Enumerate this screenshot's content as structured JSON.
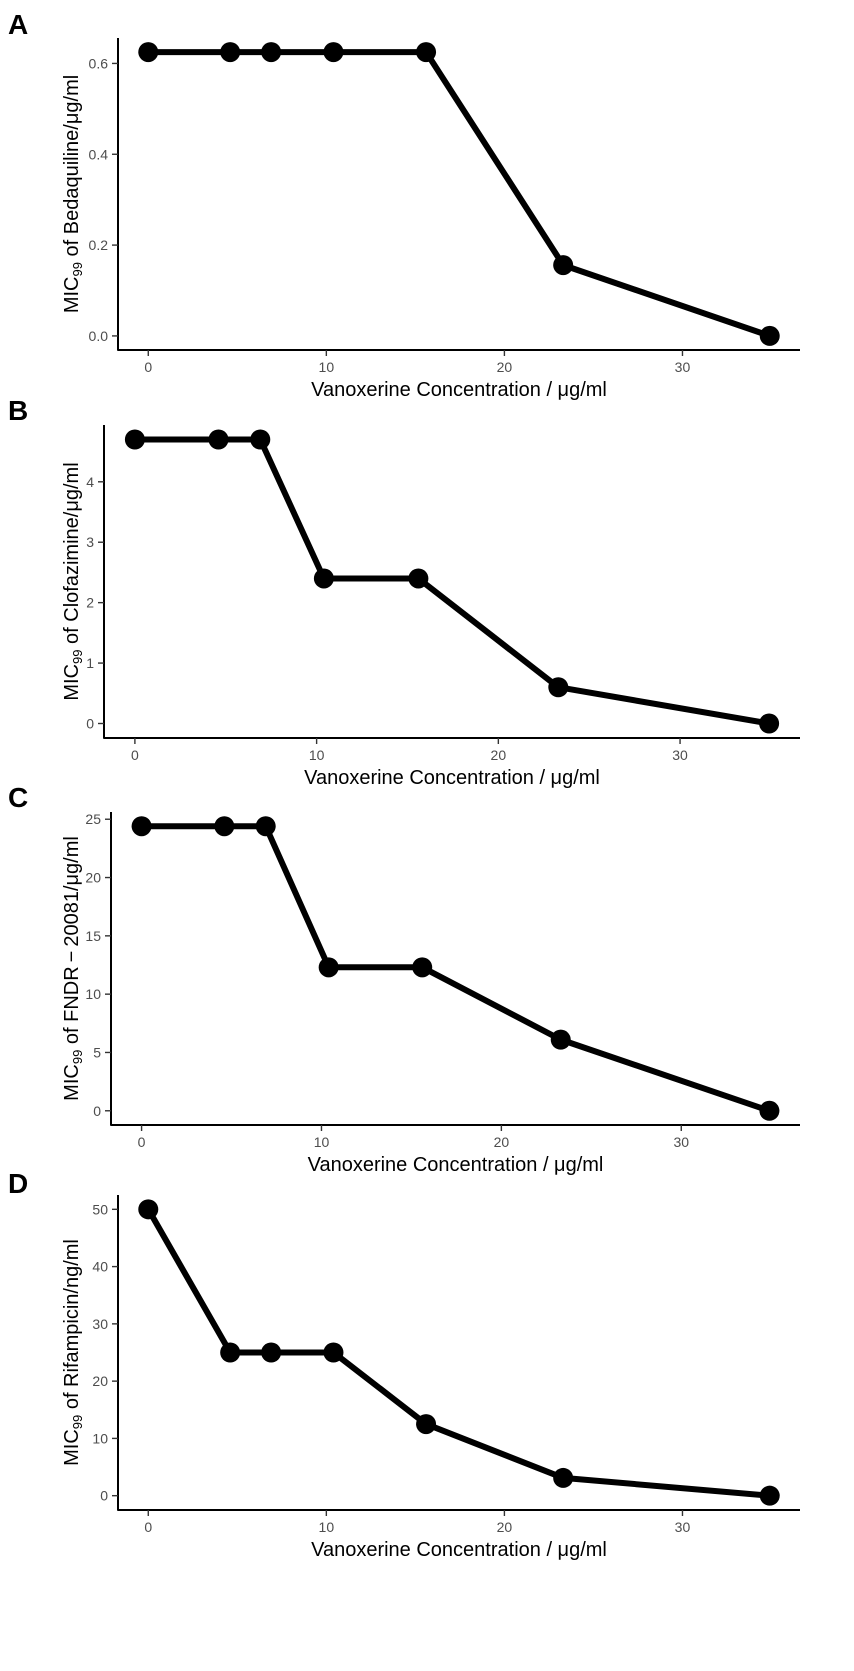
{
  "chart_data": [
    {
      "type": "line",
      "panel": "A",
      "title": "",
      "xlabel": "Vanoxerine Concentration / μg/ml",
      "ylabel": {
        "prefix": "MIC",
        "subscript": "99",
        "suffix": " of Bedaquiline/μg/ml"
      },
      "x": [
        0,
        4.6,
        6.9,
        10.4,
        15.6,
        23.3,
        34.9
      ],
      "values": [
        0.625,
        0.625,
        0.625,
        0.625,
        0.625,
        0.156,
        0.0
      ],
      "xlim": [
        -1.7,
        36.6
      ],
      "ylim": [
        -0.031,
        0.656
      ],
      "xticks": [
        0,
        10,
        20,
        30
      ],
      "yticks": [
        0.0,
        0.2,
        0.4,
        0.6
      ],
      "ytick_labels": [
        "0.0",
        "0.2",
        "0.4",
        "0.6"
      ],
      "grid": false,
      "color": "#000000"
    },
    {
      "type": "line",
      "panel": "B",
      "title": "",
      "xlabel": "Vanoxerine Concentration / μg/ml",
      "ylabel": {
        "prefix": "MIC",
        "subscript": "99",
        "suffix": " of Clofazimine/μg/ml"
      },
      "x": [
        0,
        4.6,
        6.9,
        10.4,
        15.6,
        23.3,
        34.9
      ],
      "values": [
        4.7,
        4.7,
        4.7,
        2.4,
        2.4,
        0.6,
        0.0
      ],
      "xlim": [
        -1.7,
        36.6
      ],
      "ylim": [
        -0.24,
        4.94
      ],
      "xticks": [
        0,
        10,
        20,
        30
      ],
      "yticks": [
        0,
        1,
        2,
        3,
        4
      ],
      "ytick_labels": [
        "0",
        "1",
        "2",
        "3",
        "4"
      ],
      "grid": false,
      "color": "#000000"
    },
    {
      "type": "line",
      "panel": "C",
      "title": "",
      "xlabel": "Vanoxerine Concentration / μg/ml",
      "ylabel": {
        "prefix": "MIC",
        "subscript": "99",
        "suffix": " of FNDR − 20081/μg/ml"
      },
      "x": [
        0,
        4.6,
        6.9,
        10.4,
        15.6,
        23.3,
        34.9
      ],
      "values": [
        24.4,
        24.4,
        24.4,
        12.3,
        12.3,
        6.1,
        0.0
      ],
      "xlim": [
        -1.7,
        36.6
      ],
      "ylim": [
        -1.22,
        25.62
      ],
      "xticks": [
        0,
        10,
        20,
        30
      ],
      "yticks": [
        0,
        5,
        10,
        15,
        20,
        25
      ],
      "ytick_labels": [
        "0",
        "5",
        "10",
        "15",
        "20",
        "25"
      ],
      "grid": false,
      "color": "#000000"
    },
    {
      "type": "line",
      "panel": "D",
      "title": "",
      "xlabel": "Vanoxerine Concentration / μg/ml",
      "ylabel": {
        "prefix": "MIC",
        "subscript": "99",
        "suffix": " of Rifampicin/ng/ml"
      },
      "x": [
        0,
        4.6,
        6.9,
        10.4,
        15.6,
        23.3,
        34.9
      ],
      "values": [
        50,
        25,
        25,
        25,
        12.5,
        3.1,
        0.0
      ],
      "xlim": [
        -1.7,
        36.6
      ],
      "ylim": [
        -2.5,
        52.5
      ],
      "xticks": [
        0,
        10,
        20,
        30
      ],
      "yticks": [
        0,
        10,
        20,
        30,
        40,
        50
      ],
      "ytick_labels": [
        "0",
        "10",
        "20",
        "30",
        "40",
        "50"
      ],
      "grid": false,
      "color": "#000000"
    }
  ]
}
